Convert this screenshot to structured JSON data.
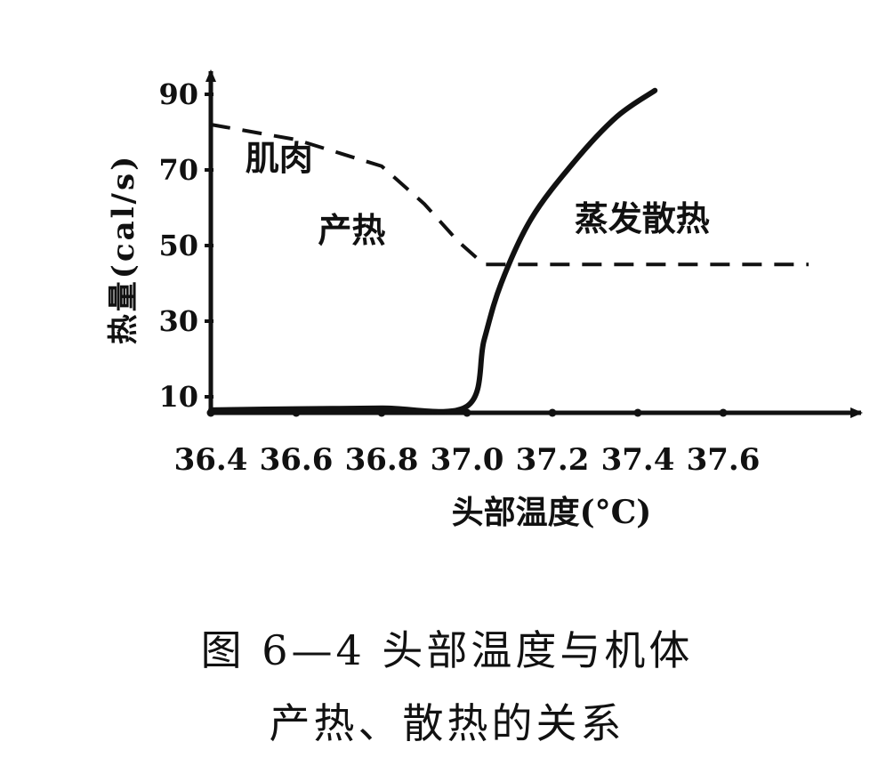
{
  "chart_data": {
    "type": "line",
    "xlabel": "头部温度(°C)",
    "ylabel": "热量(cal/s)",
    "x_ticks": [
      "36.4",
      "36.6",
      "36.8",
      "37.0",
      "37.2",
      "37.4",
      "37.6"
    ],
    "y_ticks": [
      "10",
      "30",
      "50",
      "70",
      "90"
    ],
    "xlim": [
      36.4,
      37.9
    ],
    "ylim": [
      5,
      95
    ],
    "grid": false,
    "series": [
      {
        "style": "dashed",
        "color": "#111111",
        "points": [
          [
            36.4,
            82
          ],
          [
            36.6,
            78
          ],
          [
            36.8,
            71
          ],
          [
            36.9,
            61
          ],
          [
            36.98,
            51
          ],
          [
            37.04,
            45
          ],
          [
            37.2,
            45
          ],
          [
            37.4,
            45
          ],
          [
            37.6,
            45
          ],
          [
            37.8,
            45
          ]
        ]
      },
      {
        "style": "solid",
        "color": "#111111",
        "points": [
          [
            36.4,
            6.5
          ],
          [
            36.6,
            6.8
          ],
          [
            36.8,
            7
          ],
          [
            37.0,
            7.5
          ],
          [
            37.04,
            25
          ],
          [
            37.08,
            40
          ],
          [
            37.15,
            57
          ],
          [
            37.25,
            72
          ],
          [
            37.35,
            84
          ],
          [
            37.44,
            91
          ]
        ]
      }
    ],
    "annotations": [
      {
        "text": "肌肉",
        "x": 36.56,
        "y": 70
      },
      {
        "text": "产热",
        "x": 36.73,
        "y": 51
      },
      {
        "text": "蒸发散热",
        "x": 37.41,
        "y": 54
      }
    ]
  },
  "caption": {
    "line1": "图 6—4   头部温度与机体",
    "line2": "产热、散热的关系"
  }
}
